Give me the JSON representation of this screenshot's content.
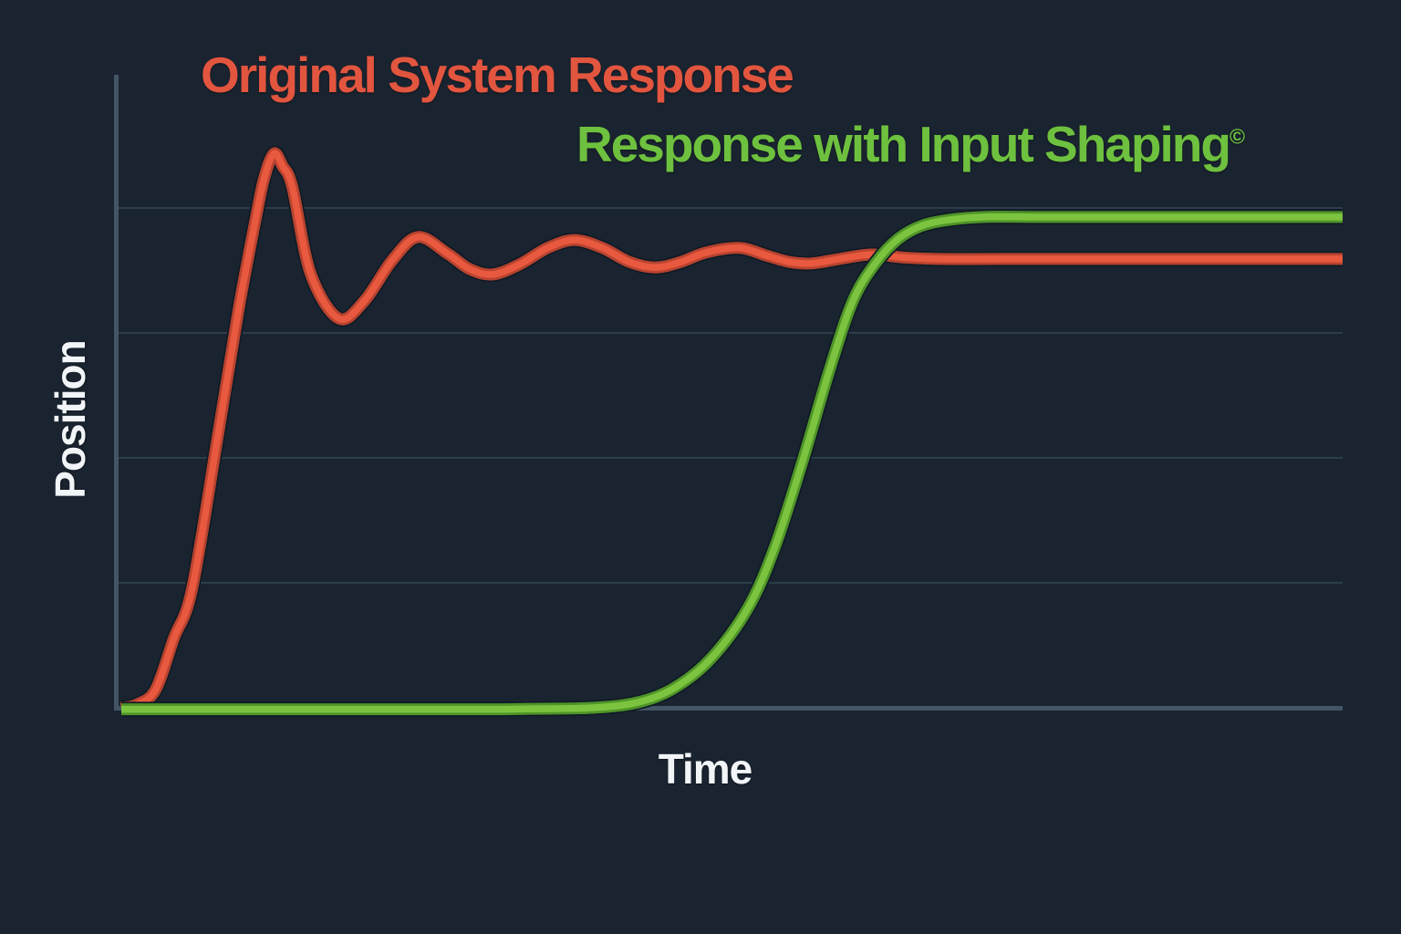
{
  "palette": {
    "background": "#1a2430",
    "axis": "#445565",
    "gridline": "#2b3d4b",
    "curve_halo": "#101b26",
    "label_text": "#f2f5f8"
  },
  "chart_data": {
    "type": "line",
    "title": "",
    "xlabel": "Time",
    "ylabel": "Position",
    "x_range_units": [
      0,
      10
    ],
    "y_range_units": [
      0,
      1.15
    ],
    "grid": "horizontal",
    "gridline_values": [
      0.25,
      0.5,
      0.75,
      1.0
    ],
    "axis_tick_labels": "none",
    "legend": [
      {
        "label": "Original System Response",
        "superscript": "",
        "color": "#e2553f",
        "position": "top-left"
      },
      {
        "label": "Response with Input Shaping",
        "superscript": "©",
        "color": "#6ec13e",
        "position": "upper-middle"
      }
    ],
    "series": [
      {
        "name": "Original System Response",
        "color_core": "#e8593f",
        "color_edge": "#b8432f",
        "peak_value": 1.109,
        "final_value": 0.898,
        "t": [
          0,
          0.13,
          0.28,
          0.43,
          0.58,
          0.8,
          0.96,
          1.1,
          1.17,
          1.25,
          1.32,
          1.4,
          1.55,
          1.78,
          1.99,
          2.22,
          2.43,
          2.67,
          2.85,
          3.04,
          3.26,
          3.49,
          3.71,
          3.94,
          4.16,
          4.37,
          4.57,
          4.79,
          5.06,
          5.28,
          5.47,
          5.65,
          5.88,
          6.14,
          6.4,
          6.7,
          7.2,
          7.97,
          8.7,
          9.4,
          10
        ],
        "v": [
          0,
          0.007,
          0.036,
          0.139,
          0.239,
          0.558,
          0.796,
          0.978,
          1.06,
          1.109,
          1.084,
          1.042,
          0.869,
          0.779,
          0.814,
          0.896,
          0.942,
          0.909,
          0.878,
          0.867,
          0.887,
          0.92,
          0.936,
          0.92,
          0.892,
          0.881,
          0.891,
          0.911,
          0.92,
          0.905,
          0.892,
          0.889,
          0.898,
          0.907,
          0.901,
          0.898,
          0.898,
          0.898,
          0.898,
          0.898,
          0.898
        ]
      },
      {
        "name": "Response with Input Shaping",
        "color_core": "#7cc43f",
        "color_edge": "#4f9428",
        "final_value": 0.982,
        "t": [
          0,
          1.0,
          2.0,
          3.0,
          3.34,
          3.86,
          4.23,
          4.53,
          4.83,
          5.13,
          5.35,
          5.58,
          5.8,
          5.99,
          6.18,
          6.36,
          6.55,
          6.77,
          7.07,
          7.5,
          7.97,
          8.7,
          9.4,
          10
        ],
        "v": [
          -0.003,
          -0.003,
          -0.003,
          -0.003,
          -0.002,
          0.0,
          0.011,
          0.04,
          0.099,
          0.199,
          0.321,
          0.495,
          0.677,
          0.814,
          0.891,
          0.938,
          0.964,
          0.976,
          0.982,
          0.982,
          0.982,
          0.982,
          0.982,
          0.982
        ]
      }
    ]
  }
}
